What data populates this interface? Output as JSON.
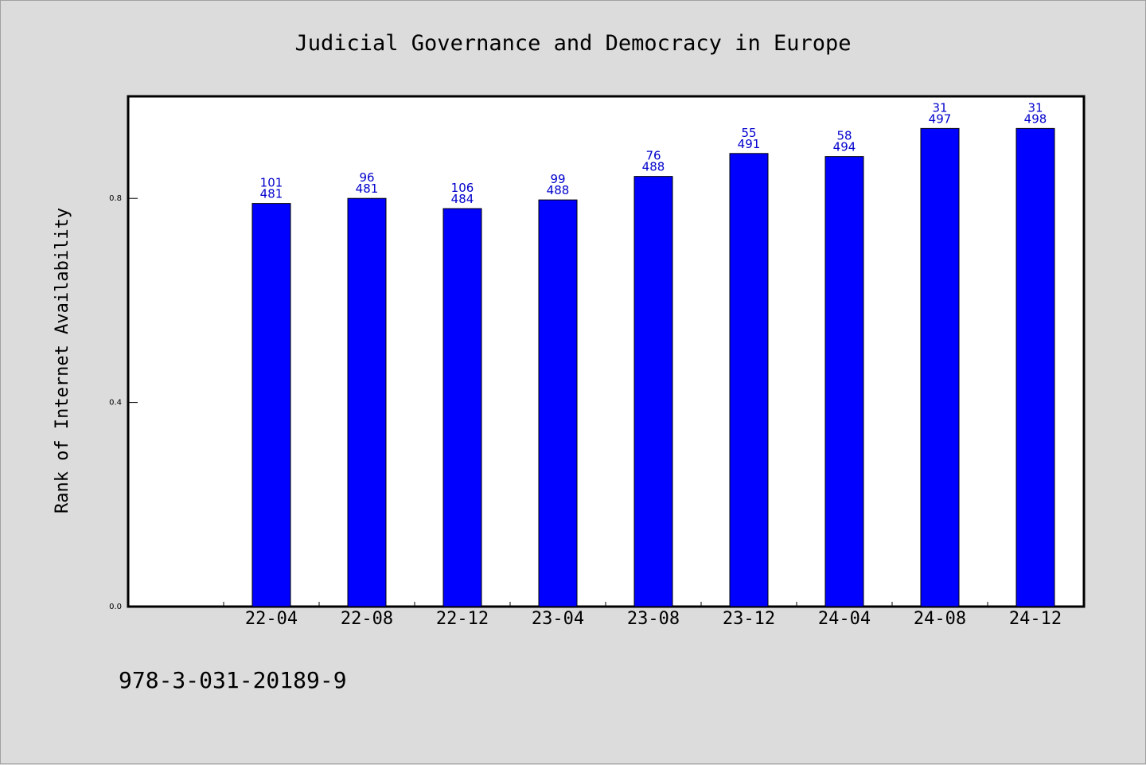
{
  "chart_data": {
    "type": "bar",
    "title": "Judicial Governance and Democracy in Europe",
    "xlabel": "",
    "ylabel": "Rank of Internet Availability",
    "categories": [
      "22-04",
      "22-08",
      "22-12",
      "23-04",
      "23-08",
      "23-12",
      "24-04",
      "24-08",
      "24-12"
    ],
    "values": [
      0.79,
      0.8,
      0.78,
      0.797,
      0.843,
      0.888,
      0.882,
      0.937,
      0.937
    ],
    "labels_top": [
      "101",
      "96",
      "106",
      "99",
      "76",
      "55",
      "58",
      "31",
      "31"
    ],
    "labels_bottom": [
      "481",
      "481",
      "484",
      "488",
      "488",
      "491",
      "494",
      "497",
      "498"
    ],
    "yticks": [
      "0.0",
      "0.4",
      "0.8"
    ],
    "ytick_values": [
      0.0,
      0.4,
      0.8
    ],
    "ylim": [
      0,
      1.0
    ],
    "grid": false,
    "bar_color": "#0000ff",
    "label_color": "#0000cc",
    "background": "#dcdcdc"
  },
  "footer": {
    "isbn": "978-3-031-20189-9"
  }
}
